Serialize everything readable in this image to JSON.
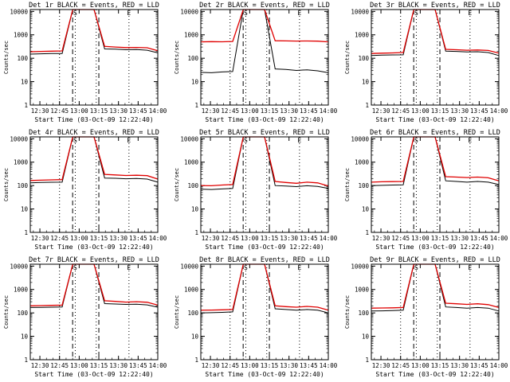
{
  "chart_data": [
    {
      "type": "line",
      "title": "Det 1r BLACK = Events, RED = LLD",
      "xlabel": "Start Time (03-Oct-09 12:22:40)",
      "ylabel": "Counts/sec",
      "y_scale": "log",
      "ylim": [
        1,
        12000
      ],
      "xlim": [
        "12:22:40",
        "14:00"
      ],
      "x_ticks": [
        "12:30",
        "12:45",
        "13:00",
        "13:15",
        "13:30",
        "13:45",
        "14:00"
      ],
      "y_ticks": [
        "1",
        "10",
        "100",
        "1000",
        "10000"
      ],
      "markers": [
        {
          "time": "12:55",
          "style": "dashed",
          "label": ""
        },
        {
          "time": "13:15",
          "style": "dashed",
          "label": ""
        },
        {
          "time": "12:45",
          "style": "dotted",
          "label": ""
        },
        {
          "time": "12:57",
          "style": "dotted",
          "label": "S"
        },
        {
          "time": "13:13",
          "style": "dotted",
          "label": ""
        },
        {
          "time": "13:38",
          "style": "dotted",
          "label": "E"
        }
      ],
      "series": [
        {
          "name": "BLACK = Events",
          "color": "#000000",
          "y": [
            150,
            155,
            158,
            160,
            12000,
            12000,
            12000,
            250,
            245,
            230,
            235,
            220,
            170
          ]
        },
        {
          "name": "RED = LLD",
          "color": "#e00000",
          "y": [
            190,
            195,
            200,
            205,
            12000,
            12000,
            12000,
            320,
            300,
            285,
            290,
            280,
            210
          ]
        }
      ]
    },
    {
      "type": "line",
      "title": "Det 2r BLACK = Events, RED = LLD",
      "xlabel": "Start Time (03-Oct-09 12:22:40)",
      "ylabel": "Counts/sec",
      "y_scale": "log",
      "ylim": [
        1,
        12000
      ],
      "xlim": [
        "12:22:40",
        "14:00"
      ],
      "x_ticks": [
        "12:30",
        "12:45",
        "13:00",
        "13:15",
        "13:30",
        "13:45",
        "14:00"
      ],
      "y_ticks": [
        "1",
        "10",
        "100",
        "1000",
        "10000"
      ],
      "markers": [
        {
          "time": "12:55",
          "style": "dashed",
          "label": ""
        },
        {
          "time": "13:15",
          "style": "dashed",
          "label": ""
        },
        {
          "time": "12:45",
          "style": "dotted",
          "label": ""
        },
        {
          "time": "12:57",
          "style": "dotted",
          "label": "S"
        },
        {
          "time": "13:13",
          "style": "dotted",
          "label": ""
        },
        {
          "time": "13:38",
          "style": "dotted",
          "label": "E"
        }
      ],
      "series": [
        {
          "name": "BLACK = Events",
          "color": "#000000",
          "y": [
            25,
            24,
            26,
            27,
            12000,
            12000,
            12000,
            35,
            33,
            30,
            32,
            29,
            24
          ]
        },
        {
          "name": "RED = LLD",
          "color": "#e00000",
          "y": [
            500,
            510,
            505,
            520,
            12000,
            12000,
            12000,
            560,
            550,
            540,
            545,
            535,
            500
          ]
        }
      ]
    },
    {
      "type": "line",
      "title": "Det 3r BLACK = Events, RED = LLD",
      "xlabel": "Start Time (03-Oct-09 12:22:40)",
      "ylabel": "Counts/sec",
      "y_scale": "log",
      "ylim": [
        1,
        12000
      ],
      "xlim": [
        "12:22:40",
        "14:00"
      ],
      "x_ticks": [
        "12:30",
        "12:45",
        "13:00",
        "13:15",
        "13:30",
        "13:45",
        "14:00"
      ],
      "y_ticks": [
        "1",
        "10",
        "100",
        "1000",
        "10000"
      ],
      "markers": [
        {
          "time": "12:55",
          "style": "dashed",
          "label": ""
        },
        {
          "time": "13:15",
          "style": "dashed",
          "label": ""
        },
        {
          "time": "12:45",
          "style": "dotted",
          "label": ""
        },
        {
          "time": "12:57",
          "style": "dotted",
          "label": "S"
        },
        {
          "time": "13:13",
          "style": "dotted",
          "label": ""
        },
        {
          "time": "13:38",
          "style": "dotted",
          "label": "E"
        }
      ],
      "series": [
        {
          "name": "BLACK = Events",
          "color": "#000000",
          "y": [
            130,
            135,
            138,
            140,
            12000,
            12000,
            12000,
            200,
            195,
            185,
            190,
            175,
            130
          ]
        },
        {
          "name": "RED = LLD",
          "color": "#e00000",
          "y": [
            160,
            165,
            168,
            175,
            12000,
            12000,
            12000,
            240,
            230,
            220,
            225,
            215,
            165
          ]
        }
      ]
    },
    {
      "type": "line",
      "title": "Det 4r BLACK = Events, RED = LLD",
      "xlabel": "Start Time (03-Oct-09 12:22:40)",
      "ylabel": "Counts/sec",
      "y_scale": "log",
      "ylim": [
        1,
        12000
      ],
      "xlim": [
        "12:22:40",
        "14:00"
      ],
      "x_ticks": [
        "12:30",
        "12:45",
        "13:00",
        "13:15",
        "13:30",
        "13:45",
        "14:00"
      ],
      "y_ticks": [
        "1",
        "10",
        "100",
        "1000",
        "10000"
      ],
      "markers": [
        {
          "time": "12:55",
          "style": "dashed",
          "label": ""
        },
        {
          "time": "13:15",
          "style": "dashed",
          "label": ""
        },
        {
          "time": "12:45",
          "style": "dotted",
          "label": ""
        },
        {
          "time": "12:57",
          "style": "dotted",
          "label": "S"
        },
        {
          "time": "13:13",
          "style": "dotted",
          "label": ""
        },
        {
          "time": "13:38",
          "style": "dotted",
          "label": "E"
        }
      ],
      "series": [
        {
          "name": "BLACK = Events",
          "color": "#000000",
          "y": [
            130,
            135,
            138,
            140,
            12000,
            12000,
            12000,
            210,
            205,
            195,
            200,
            190,
            140
          ]
        },
        {
          "name": "RED = LLD",
          "color": "#e00000",
          "y": [
            165,
            170,
            175,
            180,
            12000,
            12000,
            12000,
            300,
            285,
            270,
            275,
            265,
            190
          ]
        }
      ]
    },
    {
      "type": "line",
      "title": "Det 5r BLACK = Events, RED = LLD",
      "xlabel": "Start Time (03-Oct-09 12:22:40)",
      "ylabel": "Counts/sec",
      "y_scale": "log",
      "ylim": [
        1,
        12000
      ],
      "xlim": [
        "12:22:40",
        "14:00"
      ],
      "x_ticks": [
        "12:30",
        "12:45",
        "13:00",
        "13:15",
        "13:30",
        "13:45",
        "14:00"
      ],
      "y_ticks": [
        "1",
        "10",
        "100",
        "1000",
        "10000"
      ],
      "markers": [
        {
          "time": "12:55",
          "style": "dashed",
          "label": ""
        },
        {
          "time": "13:15",
          "style": "dashed",
          "label": ""
        },
        {
          "time": "12:45",
          "style": "dotted",
          "label": ""
        },
        {
          "time": "12:57",
          "style": "dotted",
          "label": "S"
        },
        {
          "time": "13:13",
          "style": "dotted",
          "label": ""
        },
        {
          "time": "13:38",
          "style": "dotted",
          "label": "E"
        }
      ],
      "series": [
        {
          "name": "BLACK = Events",
          "color": "#000000",
          "y": [
            70,
            68,
            72,
            75,
            12000,
            12000,
            12000,
            100,
            95,
            90,
            98,
            92,
            75
          ]
        },
        {
          "name": "RED = LLD",
          "color": "#e00000",
          "y": [
            100,
            98,
            105,
            110,
            12000,
            12000,
            12000,
            150,
            135,
            125,
            140,
            130,
            95
          ]
        }
      ]
    },
    {
      "type": "line",
      "title": "Det 6r BLACK = Events, RED = LLD",
      "xlabel": "Start Time (03-Oct-09 12:22:40)",
      "ylabel": "Counts/sec",
      "y_scale": "log",
      "ylim": [
        1,
        12000
      ],
      "xlim": [
        "12:22:40",
        "14:00"
      ],
      "x_ticks": [
        "12:30",
        "12:45",
        "13:00",
        "13:15",
        "13:30",
        "13:45",
        "14:00"
      ],
      "y_ticks": [
        "1",
        "10",
        "100",
        "1000",
        "10000"
      ],
      "markers": [
        {
          "time": "12:55",
          "style": "dashed",
          "label": ""
        },
        {
          "time": "13:15",
          "style": "dashed",
          "label": ""
        },
        {
          "time": "12:45",
          "style": "dotted",
          "label": ""
        },
        {
          "time": "12:57",
          "style": "dotted",
          "label": "S"
        },
        {
          "time": "13:13",
          "style": "dotted",
          "label": ""
        },
        {
          "time": "13:38",
          "style": "dotted",
          "label": "E"
        }
      ],
      "series": [
        {
          "name": "BLACK = Events",
          "color": "#000000",
          "y": [
            100,
            102,
            105,
            108,
            12000,
            12000,
            12000,
            160,
            150,
            140,
            150,
            140,
            110
          ]
        },
        {
          "name": "RED = LLD",
          "color": "#e00000",
          "y": [
            140,
            145,
            148,
            150,
            12000,
            12000,
            12000,
            240,
            230,
            220,
            230,
            215,
            160
          ]
        }
      ]
    },
    {
      "type": "line",
      "title": "Det 7r BLACK = Events, RED = LLD",
      "xlabel": "Start Time (03-Oct-09 12:22:40)",
      "ylabel": "Counts/sec",
      "y_scale": "log",
      "ylim": [
        1,
        12000
      ],
      "xlim": [
        "12:22:40",
        "14:00"
      ],
      "x_ticks": [
        "12:30",
        "12:45",
        "13:00",
        "13:15",
        "13:30",
        "13:45",
        "14:00"
      ],
      "y_ticks": [
        "1",
        "10",
        "100",
        "1000",
        "10000"
      ],
      "markers": [
        {
          "time": "12:55",
          "style": "dashed",
          "label": ""
        },
        {
          "time": "13:15",
          "style": "dashed",
          "label": ""
        },
        {
          "time": "12:45",
          "style": "dotted",
          "label": ""
        },
        {
          "time": "12:57",
          "style": "dotted",
          "label": "S"
        },
        {
          "time": "13:13",
          "style": "dotted",
          "label": ""
        },
        {
          "time": "13:38",
          "style": "dotted",
          "label": "E"
        }
      ],
      "series": [
        {
          "name": "BLACK = Events",
          "color": "#000000",
          "y": [
            170,
            172,
            175,
            180,
            12000,
            12000,
            12000,
            250,
            240,
            230,
            235,
            220,
            175
          ]
        },
        {
          "name": "RED = LLD",
          "color": "#e00000",
          "y": [
            200,
            205,
            210,
            215,
            12000,
            12000,
            12000,
            330,
            310,
            290,
            300,
            285,
            215
          ]
        }
      ]
    },
    {
      "type": "line",
      "title": "Det 8r BLACK = Events, RED = LLD",
      "xlabel": "Start Time (03-Oct-09 12:22:40)",
      "ylabel": "Counts/sec",
      "y_scale": "log",
      "ylim": [
        1,
        12000
      ],
      "xlim": [
        "12:22:40",
        "14:00"
      ],
      "x_ticks": [
        "12:30",
        "12:45",
        "13:00",
        "13:15",
        "13:30",
        "13:45",
        "14:00"
      ],
      "y_ticks": [
        "1",
        "10",
        "100",
        "1000",
        "10000"
      ],
      "markers": [
        {
          "time": "12:55",
          "style": "dashed",
          "label": ""
        },
        {
          "time": "13:15",
          "style": "dashed",
          "label": ""
        },
        {
          "time": "12:45",
          "style": "dotted",
          "label": ""
        },
        {
          "time": "12:57",
          "style": "dotted",
          "label": "S"
        },
        {
          "time": "13:13",
          "style": "dotted",
          "label": ""
        },
        {
          "time": "13:38",
          "style": "dotted",
          "label": "E"
        }
      ],
      "series": [
        {
          "name": "BLACK = Events",
          "color": "#000000",
          "y": [
            100,
            102,
            105,
            110,
            12000,
            12000,
            12000,
            150,
            140,
            130,
            140,
            130,
            100
          ]
        },
        {
          "name": "RED = LLD",
          "color": "#e00000",
          "y": [
            130,
            132,
            135,
            140,
            12000,
            12000,
            12000,
            200,
            185,
            175,
            190,
            175,
            130
          ]
        }
      ]
    },
    {
      "type": "line",
      "title": "Det 9r BLACK = Events, RED = LLD",
      "xlabel": "Start Time (03-Oct-09 12:22:40)",
      "ylabel": "Counts/sec",
      "y_scale": "log",
      "ylim": [
        1,
        12000
      ],
      "xlim": [
        "12:22:40",
        "14:00"
      ],
      "x_ticks": [
        "12:30",
        "12:45",
        "13:00",
        "13:15",
        "13:30",
        "13:45",
        "14:00"
      ],
      "y_ticks": [
        "1",
        "10",
        "100",
        "1000",
        "10000"
      ],
      "markers": [
        {
          "time": "12:55",
          "style": "dashed",
          "label": ""
        },
        {
          "time": "13:15",
          "style": "dashed",
          "label": ""
        },
        {
          "time": "12:45",
          "style": "dotted",
          "label": ""
        },
        {
          "time": "12:57",
          "style": "dotted",
          "label": "S"
        },
        {
          "time": "13:13",
          "style": "dotted",
          "label": ""
        },
        {
          "time": "13:38",
          "style": "dotted",
          "label": "E"
        }
      ],
      "series": [
        {
          "name": "BLACK = Events",
          "color": "#000000",
          "y": [
            120,
            122,
            125,
            130,
            12000,
            12000,
            12000,
            180,
            170,
            160,
            170,
            160,
            120
          ]
        },
        {
          "name": "RED = LLD",
          "color": "#e00000",
          "y": [
            160,
            162,
            165,
            170,
            12000,
            12000,
            12000,
            260,
            245,
            230,
            245,
            225,
            170
          ]
        }
      ]
    }
  ]
}
